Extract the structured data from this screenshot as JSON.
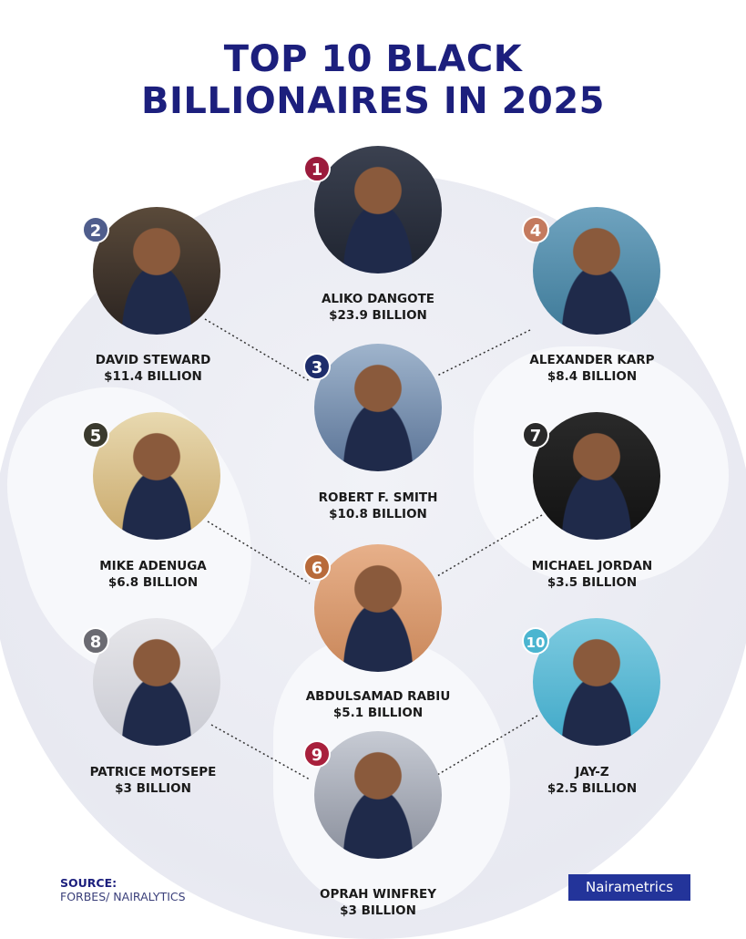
{
  "title": {
    "line1": "TOP 10 BLACK",
    "line2": "BILLIONAIRES IN 2025"
  },
  "people": [
    {
      "rank": "1",
      "name": "ALIKO DANGOTE",
      "worth": "$23.9 BILLION",
      "badge_color": "#9b1b3c"
    },
    {
      "rank": "2",
      "name": "DAVID STEWARD",
      "worth": "$11.4 BILLION",
      "badge_color": "#4f5d8c"
    },
    {
      "rank": "3",
      "name": "ROBERT F. SMITH",
      "worth": "$10.8 BILLION",
      "badge_color": "#1e2d6b"
    },
    {
      "rank": "4",
      "name": "ALEXANDER KARP",
      "worth": "$8.4 BILLION",
      "badge_color": "#c47a5e"
    },
    {
      "rank": "5",
      "name": "MIKE ADENUGA",
      "worth": "$6.8 BILLION",
      "badge_color": "#3a3a2e"
    },
    {
      "rank": "6",
      "name": "ABDULSAMAD RABIU",
      "worth": "$5.1 BILLION",
      "badge_color": "#b86a3a"
    },
    {
      "rank": "7",
      "name": "MICHAEL JORDAN",
      "worth": "$3.5 BILLION",
      "badge_color": "#2a2a2a"
    },
    {
      "rank": "8",
      "name": "PATRICE MOTSEPE",
      "worth": "$3 BILLION",
      "badge_color": "#6b6b72"
    },
    {
      "rank": "9",
      "name": "OPRAH WINFREY",
      "worth": "$3 BILLION",
      "badge_color": "#a8203c"
    },
    {
      "rank": "10",
      "name": "JAY-Z",
      "worth": "$2.5 BILLION",
      "badge_color": "#4bb5d0"
    }
  ],
  "source": {
    "label": "SOURCE:",
    "value": "FORBES/ NAIRALYTICS"
  },
  "logo": "Nairametrics"
}
